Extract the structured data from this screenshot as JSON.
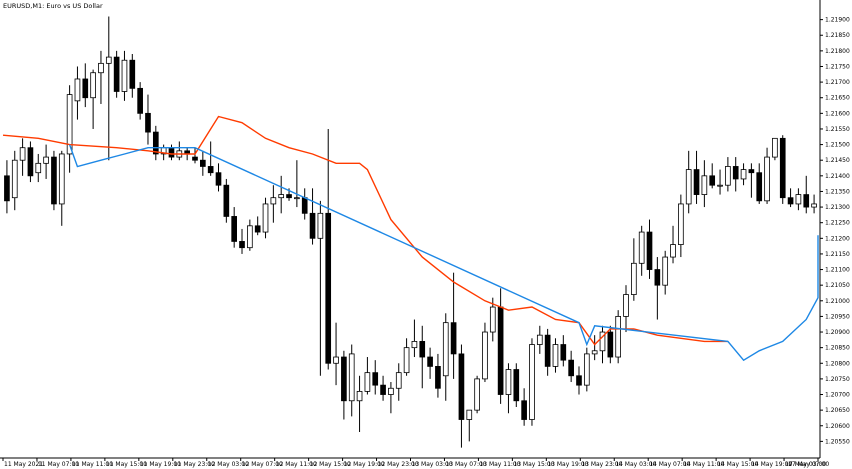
{
  "window": {
    "title": "EURUSD,M1:  Euro vs US Dollar"
  },
  "colors": {
    "background": "#ffffff",
    "bull_fill": "#ffffff",
    "bear_fill": "#000000",
    "outline": "#000000",
    "red_line": "#ff3b00",
    "blue_line": "#1e88e5"
  },
  "chart_data": {
    "type": "candlestick",
    "symbol": "EURUSD",
    "timeframe": "M1",
    "ylim": [
      1.205,
      1.2195
    ],
    "y_ticks": [
      "1.21900",
      "1.21850",
      "1.21800",
      "1.21750",
      "1.21700",
      "1.21650",
      "1.21600",
      "1.21550",
      "1.21500",
      "1.21450",
      "1.21400",
      "1.21350",
      "1.21300",
      "1.21250",
      "1.21200",
      "1.21150",
      "1.21100",
      "1.21050",
      "1.21000",
      "1.20950",
      "1.20900",
      "1.20850",
      "1.20800",
      "1.20750",
      "1.20700",
      "1.20650",
      "1.20600",
      "1.20550"
    ],
    "x_ticks": [
      "11 May 2021",
      "11 May 07:00",
      "11 May 11:00",
      "11 May 15:00",
      "11 May 19:00",
      "11 May 23:00",
      "12 May 03:00",
      "12 May 07:00",
      "12 May 11:00",
      "12 May 15:00",
      "12 May 19:00",
      "12 May 23:00",
      "13 May 03:00",
      "13 May 07:00",
      "13 May 11:00",
      "13 May 15:00",
      "13 May 19:00",
      "13 May 23:00",
      "14 May 03:00",
      "14 May 07:00",
      "14 May 11:00",
      "14 May 15:00",
      "14 May 19:00",
      "17 May 03:00",
      "17 May 07:00"
    ],
    "candles": [
      [
        1.214,
        1.2145,
        1.2128,
        1.2132
      ],
      [
        1.2133,
        1.2148,
        1.2129,
        1.2145
      ],
      [
        1.2145,
        1.2152,
        1.214,
        1.2149
      ],
      [
        1.2149,
        1.2151,
        1.2138,
        1.214
      ],
      [
        1.2141,
        1.2147,
        1.2138,
        1.2144
      ],
      [
        1.2144,
        1.215,
        1.2139,
        1.2146
      ],
      [
        1.2146,
        1.2148,
        1.2129,
        1.2131
      ],
      [
        1.2131,
        1.2148,
        1.2124,
        1.2147
      ],
      [
        1.2147,
        1.2169,
        1.2141,
        1.2166
      ],
      [
        1.2164,
        1.2175,
        1.2158,
        1.2171
      ],
      [
        1.2171,
        1.2176,
        1.2162,
        1.2165
      ],
      [
        1.2165,
        1.2174,
        1.2155,
        1.2173
      ],
      [
        1.2173,
        1.218,
        1.2163,
        1.2176
      ],
      [
        1.2176,
        1.2191,
        1.2145,
        1.2178
      ],
      [
        1.2178,
        1.218,
        1.2165,
        1.2167
      ],
      [
        1.2167,
        1.218,
        1.2164,
        1.2177
      ],
      [
        1.2177,
        1.2179,
        1.2165,
        1.2168
      ],
      [
        1.2168,
        1.217,
        1.2158,
        1.216
      ],
      [
        1.216,
        1.2166,
        1.215,
        1.2154
      ],
      [
        1.2154,
        1.2156,
        1.2145,
        1.2147
      ],
      [
        1.2147,
        1.215,
        1.2145,
        1.2149
      ],
      [
        1.2149,
        1.215,
        1.2145,
        1.2146
      ],
      [
        1.2146,
        1.2151,
        1.2145,
        1.2148
      ],
      [
        1.2148,
        1.2149,
        1.2145,
        1.2147
      ],
      [
        1.2146,
        1.2149,
        1.2144,
        1.2145
      ],
      [
        1.2145,
        1.2148,
        1.214,
        1.2143
      ],
      [
        1.2143,
        1.2151,
        1.214,
        1.2141
      ],
      [
        1.2141,
        1.2144,
        1.2135,
        1.2137
      ],
      [
        1.2137,
        1.2139,
        1.2125,
        1.2127
      ],
      [
        1.2127,
        1.213,
        1.2117,
        1.2119
      ],
      [
        1.2119,
        1.2123,
        1.2115,
        1.2117
      ],
      [
        1.2117,
        1.2126,
        1.2116,
        1.2124
      ],
      [
        1.2124,
        1.2127,
        1.2121,
        1.2122
      ],
      [
        1.2122,
        1.2133,
        1.212,
        1.2131
      ],
      [
        1.2131,
        1.2137,
        1.2125,
        1.2133
      ],
      [
        1.2133,
        1.214,
        1.2128,
        1.2134
      ],
      [
        1.2134,
        1.2136,
        1.2132,
        1.2133
      ],
      [
        1.2133,
        1.2145,
        1.213,
        1.2133
      ],
      [
        1.2133,
        1.2136,
        1.2126,
        1.2128
      ],
      [
        1.2128,
        1.2136,
        1.2118,
        1.212
      ],
      [
        1.212,
        1.2132,
        1.2076,
        1.2128
      ],
      [
        1.2128,
        1.2155,
        1.2078,
        1.208
      ],
      [
        1.208,
        1.2093,
        1.2073,
        1.2082
      ],
      [
        1.2082,
        1.2084,
        1.2062,
        1.2068
      ],
      [
        1.2068,
        1.2086,
        1.2063,
        1.2083
      ],
      [
        1.2068,
        1.2076,
        1.2058,
        1.2071
      ],
      [
        1.2071,
        1.2082,
        1.207,
        1.2077
      ],
      [
        1.2077,
        1.2081,
        1.207,
        1.2073
      ],
      [
        1.2073,
        1.2076,
        1.2068,
        1.207
      ],
      [
        1.207,
        1.2074,
        1.2064,
        1.2072
      ],
      [
        1.2072,
        1.208,
        1.2068,
        1.2077
      ],
      [
        1.2077,
        1.2088,
        1.2076,
        1.2085
      ],
      [
        1.2085,
        1.2094,
        1.2082,
        1.2087
      ],
      [
        1.2087,
        1.2092,
        1.2072,
        1.2082
      ],
      [
        1.2082,
        1.2085,
        1.2075,
        1.2079
      ],
      [
        1.2079,
        1.2083,
        1.2069,
        1.2072
      ],
      [
        1.2076,
        1.2096,
        1.2068,
        1.2093
      ],
      [
        1.2093,
        1.2109,
        1.2075,
        1.2083
      ],
      [
        1.2083,
        1.2086,
        1.2053,
        1.2062
      ],
      [
        1.2062,
        1.2065,
        1.2055,
        1.2065
      ],
      [
        1.2065,
        1.2076,
        1.2064,
        1.2075
      ],
      [
        1.2075,
        1.2093,
        1.2074,
        1.209
      ],
      [
        1.209,
        1.2101,
        1.2087,
        1.2098
      ],
      [
        1.2098,
        1.2104,
        1.2067,
        1.207
      ],
      [
        1.207,
        1.208,
        1.2064,
        1.2078
      ],
      [
        1.2078,
        1.208,
        1.2066,
        1.2068
      ],
      [
        1.2068,
        1.2072,
        1.206,
        1.2062
      ],
      [
        1.2062,
        1.2088,
        1.206,
        1.2086
      ],
      [
        1.2086,
        1.2092,
        1.2083,
        1.2089
      ],
      [
        1.2089,
        1.2091,
        1.2076,
        1.2079
      ],
      [
        1.2079,
        1.2088,
        1.2077,
        1.2086
      ],
      [
        1.2086,
        1.2089,
        1.2079,
        1.2081
      ],
      [
        1.2081,
        1.2084,
        1.2074,
        1.2076
      ],
      [
        1.2076,
        1.2079,
        1.207,
        1.2073
      ],
      [
        1.2073,
        1.2085,
        1.2071,
        1.2083
      ],
      [
        1.2083,
        1.2089,
        1.2081,
        1.2084
      ],
      [
        1.2084,
        1.2092,
        1.208,
        1.209
      ],
      [
        1.209,
        1.2092,
        1.208,
        1.2082
      ],
      [
        1.2082,
        1.2097,
        1.208,
        1.2095
      ],
      [
        1.2095,
        1.2105,
        1.209,
        1.2102
      ],
      [
        1.2102,
        1.212,
        1.21,
        1.2112
      ],
      [
        1.2112,
        1.2124,
        1.2108,
        1.2122
      ],
      [
        1.2122,
        1.2126,
        1.2107,
        1.211
      ],
      [
        1.211,
        1.2114,
        1.2094,
        1.2105
      ],
      [
        1.2105,
        1.2116,
        1.2102,
        1.2114
      ],
      [
        1.2114,
        1.2124,
        1.2112,
        1.2118
      ],
      [
        1.2118,
        1.2134,
        1.2114,
        1.2131
      ],
      [
        1.2131,
        1.2148,
        1.2128,
        1.2142
      ],
      [
        1.2142,
        1.2148,
        1.2131,
        1.2134
      ],
      [
        1.2134,
        1.2145,
        1.213,
        1.214
      ],
      [
        1.214,
        1.2144,
        1.2136,
        1.2137
      ],
      [
        1.2137,
        1.2142,
        1.2134,
        1.2137
      ],
      [
        1.2137,
        1.2146,
        1.2135,
        1.2143
      ],
      [
        1.2143,
        1.2146,
        1.2135,
        1.2139
      ],
      [
        1.2139,
        1.2144,
        1.2137,
        1.2142
      ],
      [
        1.2142,
        1.2144,
        1.2133,
        1.2141
      ],
      [
        1.2141,
        1.2144,
        1.2131,
        1.2132
      ],
      [
        1.2132,
        1.2149,
        1.2131,
        1.2146
      ],
      [
        1.2146,
        1.2152,
        1.2145,
        1.2152
      ],
      [
        1.2152,
        1.2153,
        1.2131,
        1.2133
      ],
      [
        1.2133,
        1.2136,
        1.213,
        1.2131
      ],
      [
        1.2131,
        1.2136,
        1.2129,
        1.2134
      ],
      [
        1.2134,
        1.214,
        1.2128,
        1.213
      ],
      [
        1.213,
        1.2134,
        1.2128,
        1.2131
      ]
    ],
    "series": [
      {
        "color": "red",
        "points": [
          [
            0,
            1.2153
          ],
          [
            4,
            1.2152
          ],
          [
            8,
            1.215
          ],
          [
            14,
            1.2149
          ],
          [
            18,
            1.2148
          ],
          [
            21,
            1.2147
          ],
          [
            24,
            1.2147
          ],
          [
            27,
            1.2159
          ],
          [
            30,
            1.2157
          ],
          [
            33,
            1.2152
          ],
          [
            36,
            1.2149
          ],
          [
            39,
            1.2147
          ],
          [
            42,
            1.2144
          ],
          [
            45,
            1.2144
          ],
          [
            46,
            1.2142
          ],
          [
            49,
            1.2126
          ],
          [
            53,
            1.2114
          ],
          [
            57,
            1.2106
          ],
          [
            61,
            1.21
          ],
          [
            64,
            1.2097
          ],
          [
            67,
            1.2098
          ],
          [
            70,
            1.2094
          ],
          [
            73,
            1.2093
          ],
          [
            75,
            1.2086
          ],
          [
            77,
            1.2091
          ],
          [
            80,
            1.2091
          ],
          [
            83,
            1.2089
          ],
          [
            86,
            1.2088
          ],
          [
            89,
            1.2087
          ],
          [
            92,
            1.2087
          ]
        ]
      },
      {
        "color": "blue",
        "points": [
          [
            8,
            1.215
          ],
          [
            9,
            1.2143
          ],
          [
            12,
            1.2145
          ],
          [
            15,
            1.2147
          ],
          [
            18,
            1.2149
          ],
          [
            21,
            1.2149
          ],
          [
            24,
            1.2149
          ],
          [
            73,
            1.2093
          ],
          [
            74,
            1.2086
          ],
          [
            75,
            1.2092
          ],
          [
            92,
            1.2087
          ],
          [
            94,
            1.2081
          ],
          [
            96,
            1.2084
          ],
          [
            99,
            1.2087
          ],
          [
            102,
            1.2094
          ],
          [
            106,
            1.2101
          ],
          [
            110,
            1.2108
          ],
          [
            114,
            1.2114
          ],
          [
            118,
            1.2118
          ],
          [
            122,
            1.2121
          ]
        ]
      }
    ]
  }
}
